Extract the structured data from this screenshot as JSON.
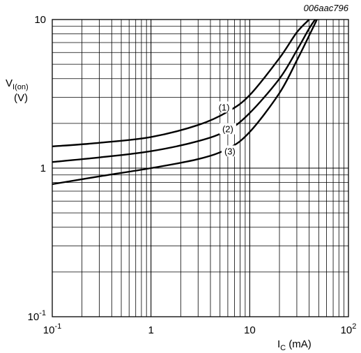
{
  "reference_code": "006aac796",
  "chart_data": {
    "type": "line",
    "x_scale": "log",
    "y_scale": "log",
    "xlim": [
      0.1,
      100
    ],
    "ylim": [
      0.1,
      10
    ],
    "grid": true,
    "x_ticks": [
      {
        "value": 0.1,
        "base": "10",
        "exp": "-1"
      },
      {
        "value": 1,
        "base": "1",
        "exp": ""
      },
      {
        "value": 10,
        "base": "10",
        "exp": ""
      },
      {
        "value": 100,
        "base": "10",
        "exp": "2"
      }
    ],
    "y_ticks": [
      {
        "value": 0.1,
        "base": "10",
        "exp": "-1"
      },
      {
        "value": 1,
        "base": "1",
        "exp": ""
      },
      {
        "value": 10,
        "base": "10",
        "exp": ""
      }
    ],
    "xlabel": {
      "main": "I",
      "sub": "C",
      "unit": " (mA)"
    },
    "ylabel": {
      "main": "V",
      "sub": "I(on)",
      "unit": "(V)"
    },
    "series": [
      {
        "name": "(1)",
        "label_at": [
          5.5,
          2.55
        ],
        "x": [
          0.1,
          0.3,
          1,
          3,
          6,
          10,
          20,
          30,
          40
        ],
        "y": [
          1.4,
          1.48,
          1.62,
          1.95,
          2.4,
          3.1,
          5.5,
          8.2,
          10.8
        ]
      },
      {
        "name": "(2)",
        "label_at": [
          6.0,
          1.82
        ],
        "x": [
          0.1,
          0.3,
          1,
          3,
          6,
          10,
          20,
          30,
          40,
          46
        ],
        "y": [
          1.1,
          1.18,
          1.3,
          1.52,
          1.8,
          2.35,
          4.0,
          6.2,
          8.7,
          10.8
        ]
      },
      {
        "name": "(3)",
        "label_at": [
          6.3,
          1.29
        ],
        "x": [
          0.1,
          0.3,
          1,
          3,
          6,
          10,
          20,
          30,
          40,
          48
        ],
        "y": [
          0.78,
          0.88,
          1.0,
          1.15,
          1.35,
          1.75,
          3.2,
          5.3,
          7.8,
          10.8
        ]
      }
    ]
  }
}
